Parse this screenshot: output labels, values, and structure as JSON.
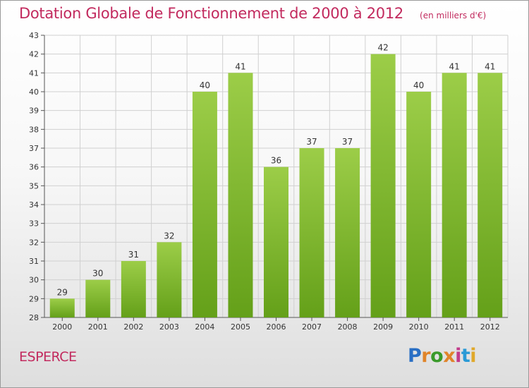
{
  "header": {
    "title": "Dotation Globale de Fonctionnement de 2000 à 2012",
    "subtitle": "(en milliers d'€)"
  },
  "footer": {
    "commune": "ESPERCE",
    "logo": "Proxiti"
  },
  "colors": {
    "title": "#c22a5e",
    "bar_top": "#9ccd48",
    "bar_bottom": "#64a019",
    "logo_letters": [
      "#2a6fc4",
      "#e0842a",
      "#3a9a2a",
      "#e0842a",
      "#c23a8a",
      "#2a9ad6",
      "#e0a82a"
    ]
  },
  "chart_data": {
    "type": "bar",
    "categories": [
      "2000",
      "2001",
      "2002",
      "2003",
      "2004",
      "2005",
      "2006",
      "2007",
      "2008",
      "2009",
      "2010",
      "2011",
      "2012"
    ],
    "values": [
      29,
      30,
      31,
      32,
      40,
      41,
      36,
      37,
      37,
      42,
      40,
      41,
      41
    ],
    "data_labels": [
      "29",
      "30",
      "31",
      "32",
      "40",
      "41",
      "36",
      "37",
      "37",
      "42",
      "40",
      "41",
      "41"
    ],
    "ylim": [
      28,
      43
    ],
    "yticks": [
      "28",
      "29",
      "30",
      "31",
      "32",
      "33",
      "34",
      "35",
      "36",
      "37",
      "38",
      "39",
      "40",
      "41",
      "42",
      "43"
    ],
    "grid": true,
    "xlabel": "",
    "ylabel": ""
  }
}
